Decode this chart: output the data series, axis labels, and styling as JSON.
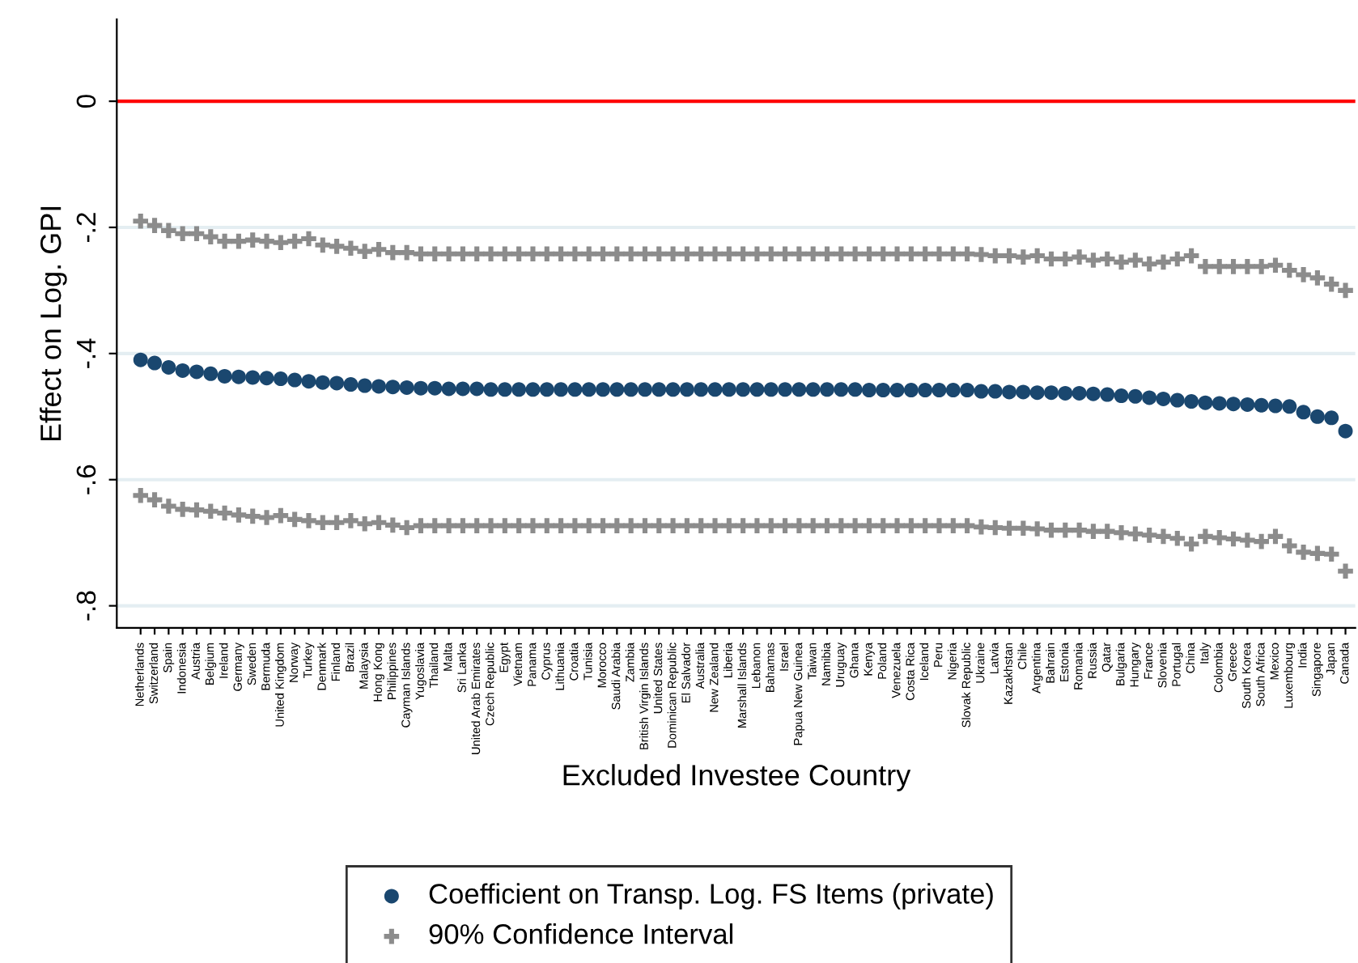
{
  "chart_data": {
    "type": "scatter",
    "xlabel": "Excluded Investee Country",
    "ylabel": "Effect on Log. GPI",
    "categories": [
      "Netherlands",
      "Switzerland",
      "Spain",
      "Indonesia",
      "Austria",
      "Belgium",
      "Ireland",
      "Germany",
      "Sweden",
      "Bermuda",
      "United Kingdom",
      "Norway",
      "Turkey",
      "Denmark",
      "Finland",
      "Brazil",
      "Malaysia",
      "Hong Kong",
      "Philippines",
      "Cayman Islands",
      "Yugoslavia",
      "Thailand",
      "Malta",
      "Sri Lanka",
      "United Arab Emirates",
      "Czech Republic",
      "Egypt",
      "Vietnam",
      "Panama",
      "Cyprus",
      "Lithuania",
      "Croatia",
      "Tunisia",
      "Morocco",
      "Saudi Arabia",
      "Zambia",
      "British Virgin Islands",
      "United States",
      "Dominican Republic",
      "El Salvador",
      "Australia",
      "New Zealand",
      "Liberia",
      "Marshall Islands",
      "Lebanon",
      "Bahamas",
      "Israel",
      "Papua New Guinea",
      "Taiwan",
      "Namibia",
      "Uruguay",
      "Ghana",
      "Kenya",
      "Poland",
      "Venezuela",
      "Costa Rica",
      "Iceland",
      "Peru",
      "Nigeria",
      "Slovak Republic",
      "Ukraine",
      "Latvia",
      "Kazakhstan",
      "Chile",
      "Argentina",
      "Bahrain",
      "Estonia",
      "Romania",
      "Russia",
      "Qatar",
      "Bulgaria",
      "Hungary",
      "France",
      "Slovenia",
      "Portugal",
      "China",
      "Italy",
      "Colombia",
      "Greece",
      "South Korea",
      "South Africa",
      "Mexico",
      "Luxembourg",
      "India",
      "Singapore",
      "Japan",
      "Canada"
    ],
    "series": [
      {
        "name": "Coefficient on Transp. Log. FS Items (private)",
        "color": "#1a476f",
        "marker": "circle",
        "values": [
          -0.41,
          -0.415,
          -0.422,
          -0.427,
          -0.429,
          -0.432,
          -0.436,
          -0.437,
          -0.438,
          -0.439,
          -0.44,
          -0.442,
          -0.444,
          -0.446,
          -0.447,
          -0.449,
          -0.451,
          -0.452,
          -0.453,
          -0.454,
          -0.455,
          -0.455,
          -0.456,
          -0.456,
          -0.456,
          -0.457,
          -0.457,
          -0.457,
          -0.457,
          -0.457,
          -0.457,
          -0.457,
          -0.457,
          -0.457,
          -0.457,
          -0.457,
          -0.457,
          -0.457,
          -0.457,
          -0.457,
          -0.457,
          -0.457,
          -0.457,
          -0.457,
          -0.457,
          -0.457,
          -0.457,
          -0.457,
          -0.457,
          -0.457,
          -0.457,
          -0.457,
          -0.458,
          -0.458,
          -0.458,
          -0.458,
          -0.458,
          -0.458,
          -0.458,
          -0.458,
          -0.46,
          -0.46,
          -0.461,
          -0.461,
          -0.462,
          -0.462,
          -0.463,
          -0.463,
          -0.464,
          -0.465,
          -0.467,
          -0.468,
          -0.47,
          -0.472,
          -0.474,
          -0.476,
          -0.478,
          -0.479,
          -0.48,
          -0.481,
          -0.482,
          -0.483,
          -0.484,
          -0.493,
          -0.5,
          -0.502,
          -0.523
        ]
      },
      {
        "name": "90% Confidence Interval",
        "color": "#8c8c8c",
        "marker": "cross",
        "values": [
          -0.19,
          -0.197,
          -0.205,
          -0.21,
          -0.21,
          -0.215,
          -0.222,
          -0.222,
          -0.22,
          -0.222,
          -0.224,
          -0.222,
          -0.218,
          -0.228,
          -0.23,
          -0.233,
          -0.238,
          -0.235,
          -0.24,
          -0.24,
          -0.242,
          -0.242,
          -0.242,
          -0.242,
          -0.242,
          -0.242,
          -0.242,
          -0.242,
          -0.242,
          -0.242,
          -0.242,
          -0.242,
          -0.242,
          -0.242,
          -0.242,
          -0.242,
          -0.242,
          -0.242,
          -0.242,
          -0.242,
          -0.242,
          -0.242,
          -0.242,
          -0.242,
          -0.242,
          -0.242,
          -0.242,
          -0.242,
          -0.242,
          -0.242,
          -0.242,
          -0.242,
          -0.242,
          -0.242,
          -0.242,
          -0.242,
          -0.242,
          -0.242,
          -0.242,
          -0.242,
          -0.243,
          -0.245,
          -0.245,
          -0.247,
          -0.245,
          -0.25,
          -0.25,
          -0.247,
          -0.252,
          -0.25,
          -0.255,
          -0.252,
          -0.258,
          -0.255,
          -0.25,
          -0.245,
          -0.262,
          -0.262,
          -0.262,
          -0.262,
          -0.262,
          -0.26,
          -0.268,
          -0.275,
          -0.28,
          -0.29,
          -0.3
        ]
      },
      {
        "color": "#8c8c8c",
        "marker": "cross",
        "values": [
          -0.625,
          -0.632,
          -0.642,
          -0.647,
          -0.648,
          -0.65,
          -0.653,
          -0.656,
          -0.658,
          -0.66,
          -0.657,
          -0.663,
          -0.665,
          -0.668,
          -0.668,
          -0.665,
          -0.67,
          -0.668,
          -0.672,
          -0.676,
          -0.673,
          -0.673,
          -0.673,
          -0.673,
          -0.673,
          -0.673,
          -0.673,
          -0.673,
          -0.673,
          -0.673,
          -0.673,
          -0.673,
          -0.673,
          -0.673,
          -0.673,
          -0.673,
          -0.673,
          -0.673,
          -0.673,
          -0.673,
          -0.673,
          -0.673,
          -0.673,
          -0.673,
          -0.673,
          -0.673,
          -0.673,
          -0.673,
          -0.673,
          -0.673,
          -0.673,
          -0.673,
          -0.673,
          -0.673,
          -0.673,
          -0.673,
          -0.673,
          -0.673,
          -0.673,
          -0.673,
          -0.675,
          -0.676,
          -0.677,
          -0.677,
          -0.678,
          -0.68,
          -0.68,
          -0.68,
          -0.682,
          -0.682,
          -0.684,
          -0.686,
          -0.688,
          -0.69,
          -0.693,
          -0.702,
          -0.69,
          -0.692,
          -0.694,
          -0.696,
          -0.698,
          -0.69,
          -0.705,
          -0.715,
          -0.717,
          -0.718,
          -0.745
        ]
      }
    ],
    "ylim": [
      -0.835,
      0.13
    ],
    "yticks": [
      {
        "value": 0,
        "label": "0"
      },
      {
        "value": -0.2,
        "label": "-.2"
      },
      {
        "value": -0.4,
        "label": "-.4"
      },
      {
        "value": -0.6,
        "label": "-.6"
      },
      {
        "value": -0.8,
        "label": "-.8"
      }
    ],
    "ref_lines": [
      {
        "axis": "y",
        "value": 0,
        "color": "#ff0000"
      }
    ],
    "grid": "y",
    "legend": "bottom"
  }
}
